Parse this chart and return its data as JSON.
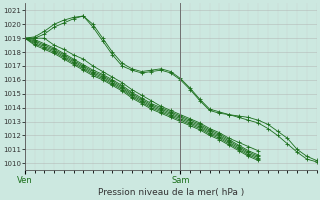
{
  "title": "Pression niveau de la mer( hPa )",
  "xlabel_ven": "Ven",
  "xlabel_sam": "Sam",
  "ylim": [
    1009.5,
    1021.5
  ],
  "yticks": [
    1010,
    1011,
    1012,
    1013,
    1014,
    1015,
    1016,
    1017,
    1018,
    1019,
    1020,
    1021
  ],
  "bg_color": "#cce8e0",
  "grid_color_major": "#b0b0b0",
  "grid_color_minor": "#c8c8c8",
  "line_color": "#1a6e1a",
  "xlim": [
    0,
    90
  ],
  "ven_x": 0,
  "sam_x": 48,
  "lines": [
    [
      0,
      1019,
      3,
      1019,
      6,
      1019,
      9,
      1018.5,
      12,
      1018.2,
      15,
      1017.8,
      18,
      1017.5,
      21,
      1017.0,
      24,
      1016.6,
      27,
      1016.2,
      30,
      1015.8,
      33,
      1015.3,
      36,
      1014.9,
      39,
      1014.5,
      42,
      1014.1,
      45,
      1013.8,
      48,
      1013.5,
      51,
      1013.2,
      54,
      1012.9,
      57,
      1012.5,
      60,
      1012.2,
      63,
      1011.8,
      66,
      1011.5,
      69,
      1011.2,
      72,
      1010.9
    ],
    [
      0,
      1019,
      3,
      1019.1,
      6,
      1019.5,
      9,
      1020.0,
      12,
      1020.3,
      15,
      1020.5,
      18,
      1020.6,
      21,
      1019.8,
      24,
      1018.8,
      27,
      1017.8,
      30,
      1017.0,
      33,
      1016.7,
      36,
      1016.5,
      39,
      1016.6,
      42,
      1016.7,
      45,
      1016.5,
      48,
      1016.0,
      51,
      1015.3,
      54,
      1014.5,
      57,
      1013.8,
      60,
      1013.6,
      63,
      1013.5,
      66,
      1013.4,
      69,
      1013.3,
      72,
      1013.1,
      75,
      1012.8,
      78,
      1012.3,
      81,
      1011.8,
      84,
      1011.0,
      87,
      1010.5,
      90,
      1010.2
    ],
    [
      0,
      1019,
      3,
      1018.8,
      6,
      1018.5,
      9,
      1018.2,
      12,
      1017.8,
      15,
      1017.4,
      18,
      1017.0,
      21,
      1016.6,
      24,
      1016.3,
      27,
      1015.9,
      30,
      1015.5,
      33,
      1015.0,
      36,
      1014.6,
      39,
      1014.2,
      42,
      1013.9,
      45,
      1013.6,
      48,
      1013.3,
      51,
      1013.0,
      54,
      1012.7,
      57,
      1012.3,
      60,
      1012.0,
      63,
      1011.6,
      66,
      1011.2,
      69,
      1010.8,
      72,
      1010.5
    ],
    [
      0,
      1019,
      3,
      1018.9,
      6,
      1018.6,
      9,
      1018.3,
      12,
      1017.9,
      15,
      1017.5,
      18,
      1017.1,
      21,
      1016.7,
      24,
      1016.4,
      27,
      1016.0,
      30,
      1015.6,
      33,
      1015.1,
      36,
      1014.7,
      39,
      1014.3,
      42,
      1014.0,
      45,
      1013.7,
      48,
      1013.4,
      51,
      1013.1,
      54,
      1012.8,
      57,
      1012.4,
      60,
      1012.1,
      63,
      1011.7,
      66,
      1011.3,
      69,
      1010.9,
      72,
      1010.6
    ],
    [
      0,
      1019,
      3,
      1018.7,
      6,
      1018.4,
      9,
      1018.1,
      12,
      1017.7,
      15,
      1017.3,
      18,
      1016.9,
      21,
      1016.5,
      24,
      1016.2,
      27,
      1015.8,
      30,
      1015.4,
      33,
      1014.9,
      36,
      1014.5,
      39,
      1014.1,
      42,
      1013.8,
      45,
      1013.5,
      48,
      1013.2,
      51,
      1012.9,
      54,
      1012.6,
      57,
      1012.2,
      60,
      1011.9,
      63,
      1011.5,
      66,
      1011.1,
      69,
      1010.7,
      72,
      1010.4
    ],
    [
      0,
      1019,
      3,
      1018.6,
      6,
      1018.3,
      9,
      1018.0,
      12,
      1017.6,
      15,
      1017.2,
      18,
      1016.8,
      21,
      1016.4,
      24,
      1016.1,
      27,
      1015.7,
      30,
      1015.3,
      33,
      1014.8,
      36,
      1014.4,
      39,
      1014.0,
      42,
      1013.7,
      45,
      1013.4,
      48,
      1013.1,
      51,
      1012.8,
      54,
      1012.5,
      57,
      1012.1,
      60,
      1011.8,
      63,
      1011.4,
      66,
      1011.0,
      69,
      1010.6,
      72,
      1010.3
    ],
    [
      0,
      1019,
      3,
      1018.5,
      6,
      1018.2,
      9,
      1017.9,
      12,
      1017.5,
      15,
      1017.1,
      18,
      1016.7,
      21,
      1016.3,
      24,
      1016.0,
      27,
      1015.6,
      30,
      1015.2,
      33,
      1014.7,
      36,
      1014.3,
      39,
      1013.9,
      42,
      1013.6,
      45,
      1013.3,
      48,
      1013.0,
      51,
      1012.7,
      54,
      1012.4,
      57,
      1012.0,
      60,
      1011.7,
      63,
      1011.3,
      66,
      1010.9,
      69,
      1010.5,
      72,
      1010.2
    ],
    [
      0,
      1019,
      3,
      1019.0,
      6,
      1019.3,
      9,
      1019.8,
      12,
      1020.1,
      15,
      1020.4,
      18,
      1020.6,
      21,
      1020.0,
      24,
      1019.0,
      27,
      1018.0,
      30,
      1017.2,
      33,
      1016.8,
      36,
      1016.6,
      39,
      1016.7,
      42,
      1016.8,
      45,
      1016.6,
      48,
      1016.1,
      51,
      1015.4,
      54,
      1014.6,
      57,
      1013.9,
      60,
      1013.7,
      63,
      1013.5,
      66,
      1013.3,
      69,
      1013.1,
      72,
      1012.9,
      75,
      1012.5,
      78,
      1012.0,
      81,
      1011.4,
      84,
      1010.8,
      87,
      1010.3,
      90,
      1010.1
    ]
  ]
}
